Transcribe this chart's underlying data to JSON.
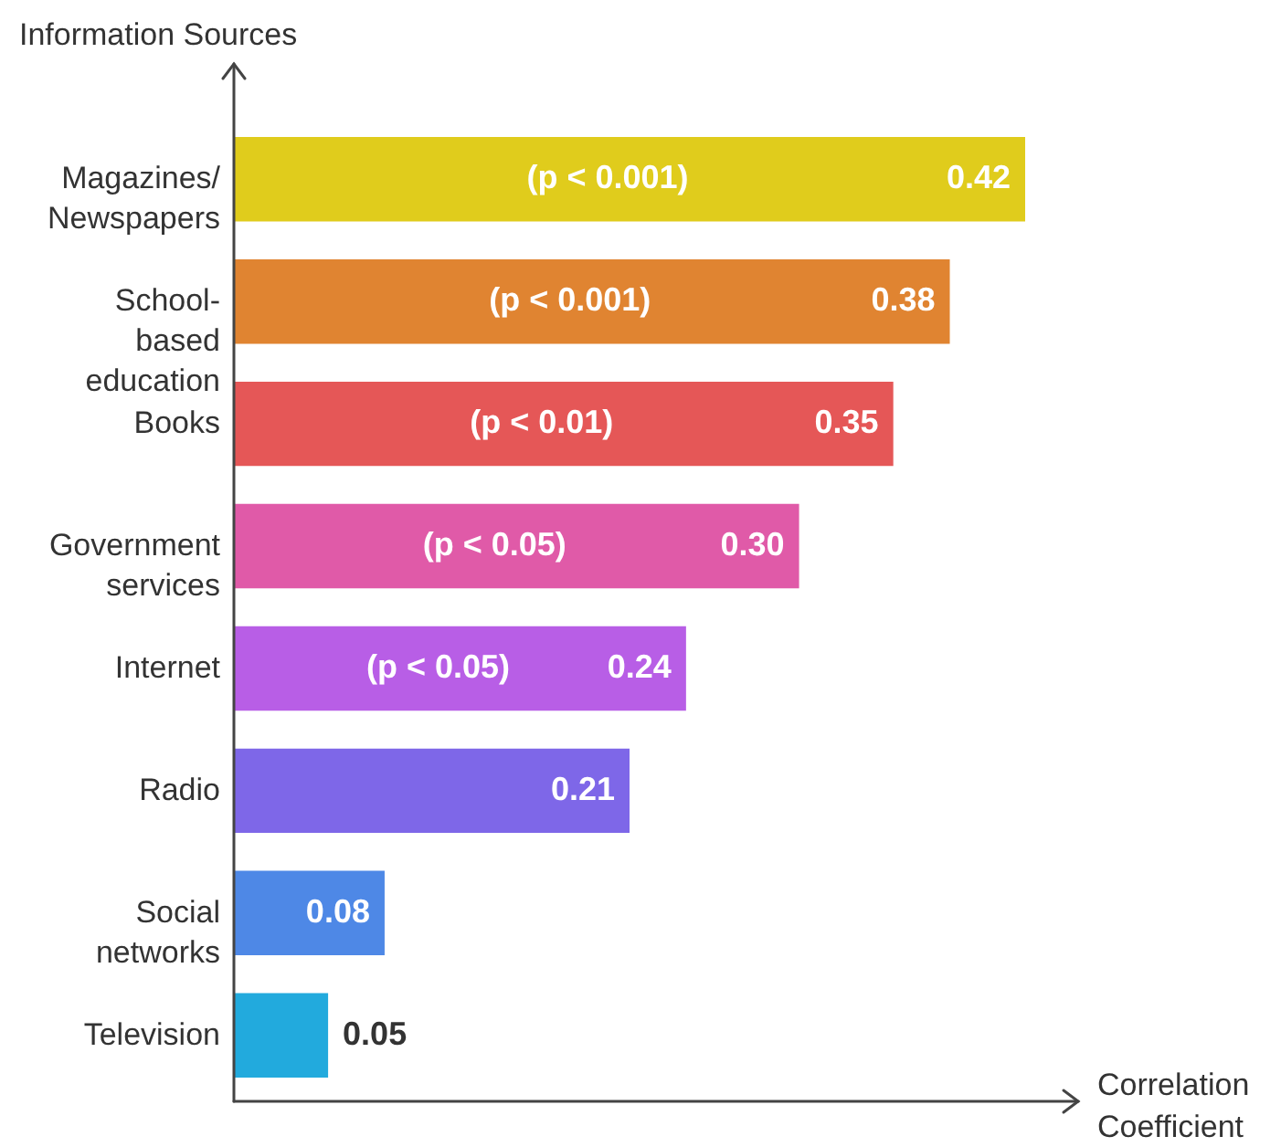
{
  "chart_data": {
    "type": "bar",
    "orientation": "horizontal",
    "xlabel": "Correlation Coefficient",
    "ylabel": "Information Sources",
    "categories": [
      "Magazines/Newspapers",
      "School-based education",
      "Books",
      "Government services",
      "Internet",
      "Radio",
      "Social networks",
      "Television"
    ],
    "values": [
      0.42,
      0.38,
      0.35,
      0.3,
      0.24,
      0.21,
      0.08,
      0.05
    ],
    "colors": [
      "#e0cc1c",
      "#e08431",
      "#e55757",
      "#e05aa8",
      "#b85ee6",
      "#7e67e8",
      "#4e88e6",
      "#22aadd"
    ],
    "value_labels": [
      "0.42",
      "0.38",
      "0.35",
      "0.30",
      "0.24",
      "0.21",
      "0.08",
      "0.05"
    ],
    "grid": false,
    "legend": false,
    "annotations": [
      "(p < 0.001)",
      "(p < 0.001)",
      "(p < 0.01)",
      "(p < 0.05)",
      "(p < 0.05)"
    ]
  }
}
